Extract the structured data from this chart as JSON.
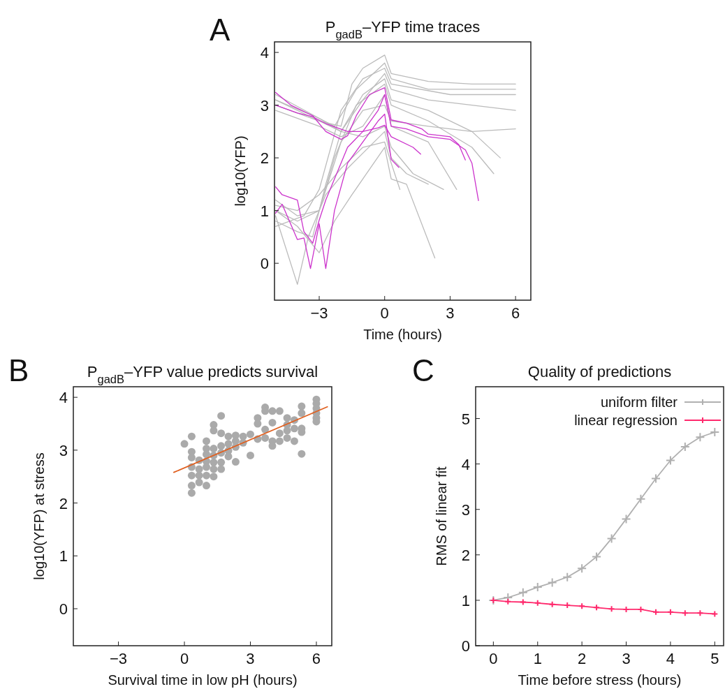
{
  "chart_data": [
    {
      "type": "line",
      "title": "P$_{gadB}$–YFP time traces",
      "xlabel": "Time (hours)",
      "ylabel": "log10(YFP)",
      "annotations": [
        "A"
      ],
      "xlim": [
        -5.05,
        6.7
      ],
      "ylim": [
        -0.7,
        4.2
      ],
      "xticks": [
        {
          "value": -3,
          "label": "−3"
        },
        0,
        3,
        6
      ],
      "yticks": [
        0,
        1,
        2,
        3,
        4
      ],
      "series": [
        {
          "color": "#bbbbbb",
          "x": [
            -5,
            -3,
            -2,
            -1.5,
            -1,
            0,
            0.3,
            2,
            4,
            6
          ],
          "values": [
            3.1,
            2.7,
            2.6,
            3.4,
            3.7,
            3.95,
            3.6,
            3.45,
            3.4,
            3.4
          ]
        },
        {
          "color": "#bbbbbb",
          "x": [
            -5,
            -3,
            -2.3,
            -1.3,
            0,
            0.3,
            2,
            4,
            6
          ],
          "values": [
            3.2,
            2.75,
            2.6,
            3.3,
            3.8,
            3.5,
            3.3,
            3.3,
            3.3
          ]
        },
        {
          "color": "#bbbbbb",
          "x": [
            -5,
            -3,
            -2,
            -1,
            0,
            0.3,
            2,
            4,
            6
          ],
          "values": [
            3.0,
            2.7,
            2.5,
            3.1,
            3.6,
            3.3,
            3.1,
            3.0,
            2.9
          ]
        },
        {
          "color": "#bbbbbb",
          "x": [
            -5,
            -4,
            -3.3,
            -2.7,
            -2,
            -1,
            0,
            0.3,
            2,
            4,
            5.3
          ],
          "values": [
            0.8,
            0.6,
            0.5,
            1.5,
            2.5,
            3.2,
            3.5,
            3.1,
            2.9,
            2.5,
            2.0
          ]
        },
        {
          "color": "#bbbbbb",
          "x": [
            -5,
            -4,
            -3,
            -2.3,
            -1.3,
            0,
            0.3,
            2,
            4,
            5
          ],
          "values": [
            1.2,
            0.9,
            1.0,
            2.0,
            3.0,
            3.4,
            3.0,
            2.7,
            2.2,
            1.7
          ]
        },
        {
          "color": "#bbbbbb",
          "x": [
            -5,
            -4,
            -3.5,
            -2.7,
            -1.7,
            0,
            0.3,
            1,
            2
          ],
          "values": [
            0.9,
            -0.4,
            0.5,
            1.3,
            1.8,
            2.5,
            2.0,
            1.7,
            1.5
          ]
        },
        {
          "color": "#bbbbbb",
          "x": [
            -5,
            -4,
            -3,
            -2.3,
            -1.5,
            0,
            0.3,
            1,
            2.3
          ],
          "values": [
            1.0,
            0.7,
            0.2,
            0.8,
            1.3,
            2.2,
            1.6,
            1.5,
            0.1
          ]
        },
        {
          "color": "#bbbbbb",
          "x": [
            -5,
            -4,
            -3,
            -2,
            -1,
            0,
            0.3,
            0.7
          ],
          "values": [
            1.1,
            1.0,
            1.3,
            1.8,
            2.2,
            2.3,
            1.9,
            1.4
          ]
        },
        {
          "color": "#bbbbbb",
          "x": [
            -5,
            -3,
            -2,
            -1,
            0,
            0.3,
            1.3,
            2.7
          ],
          "values": [
            3.1,
            2.75,
            2.5,
            2.4,
            2.6,
            2.2,
            1.7,
            1.4
          ]
        },
        {
          "color": "#bbbbbb",
          "x": [
            -5,
            -3.7,
            -3,
            -2,
            -1,
            0,
            0.3,
            3,
            6
          ],
          "values": [
            0.7,
            0.9,
            1.4,
            2.9,
            3.5,
            3.7,
            3.4,
            3.2,
            3.2
          ]
        },
        {
          "color": "#bbbbbb",
          "x": [
            -5,
            -4,
            -3,
            -2,
            -1,
            0,
            0.3,
            2,
            4,
            6
          ],
          "values": [
            1.0,
            0.8,
            1.0,
            2.3,
            2.9,
            3.0,
            2.7,
            2.6,
            2.5,
            2.55
          ]
        },
        {
          "color": "#bbbbbb",
          "x": [
            -5,
            -3,
            -2,
            -1,
            0,
            0.3,
            2,
            3.3
          ],
          "values": [
            2.9,
            2.6,
            2.4,
            2.6,
            3.2,
            2.6,
            2.3,
            1.4
          ]
        },
        {
          "color": "#cc33cc",
          "x": [
            -5,
            -4,
            -3.3,
            -2.7,
            -1.7,
            -1,
            -0.3,
            0,
            0.3,
            1.3,
            1.65
          ],
          "values": [
            3.0,
            2.85,
            2.78,
            2.65,
            2.5,
            2.5,
            2.57,
            2.62,
            2.4,
            2.2,
            2.07
          ]
        },
        {
          "color": "#cc33cc",
          "x": [
            -5,
            -4.3,
            -3.3,
            -2.7,
            -2,
            -1.7,
            -1.3,
            -0.7,
            0,
            0.3,
            1,
            1.7,
            2,
            3,
            3.4,
            3.7
          ],
          "values": [
            3.24,
            3.0,
            2.8,
            2.5,
            2.35,
            2.42,
            2.8,
            3.2,
            3.33,
            2.72,
            2.66,
            2.55,
            2.45,
            2.4,
            2.25,
            1.96
          ]
        },
        {
          "color": "#cc33cc",
          "x": [
            -5,
            -4.7,
            -4,
            -3.7,
            -3.3,
            -3,
            -2.7,
            -2.3,
            -1.7,
            -1,
            -0.3,
            0,
            0.3,
            1,
            2,
            3,
            3.7,
            4,
            4.3
          ],
          "values": [
            1.45,
            1.3,
            1.2,
            0.6,
            0.38,
            0.82,
            1.2,
            1.6,
            2.2,
            2.5,
            2.9,
            3.2,
            2.6,
            2.55,
            2.4,
            2.35,
            2.15,
            1.9,
            1.19
          ]
        },
        {
          "color": "#cc33cc",
          "x": [
            -5,
            -4.7,
            -4,
            -3.7,
            -3.4,
            -3,
            -2.7,
            -2.3,
            -1.7,
            -1,
            -0.3,
            0,
            0.3,
            0.65
          ],
          "values": [
            0.95,
            1.12,
            0.45,
            0.48,
            -0.1,
            0.75,
            -0.1,
            1.0,
            1.9,
            2.3,
            2.7,
            2.83,
            1.97,
            1.82
          ]
        }
      ]
    },
    {
      "type": "scatter",
      "title": "P$_{gadB}$–YFP value predicts survival",
      "xlabel": "Survival time in low pH (hours)",
      "ylabel": "log10(YFP) at stress",
      "annotations": [
        "B"
      ],
      "xlim": [
        -5.05,
        6.7
      ],
      "ylim": [
        -0.7,
        4.2
      ],
      "xticks": [
        {
          "value": -3,
          "label": "−3"
        },
        0,
        3,
        6
      ],
      "yticks": [
        0,
        1,
        2,
        3,
        4
      ],
      "series": [
        {
          "color": "#aaaaaa",
          "marker": "circle",
          "x": [
            0,
            0.33,
            0.33,
            0.33,
            0.33,
            0.33,
            0.33,
            0.33,
            0.67,
            0.67,
            0.67,
            0.67,
            1,
            1,
            1,
            1,
            1,
            1,
            1,
            1.33,
            1.33,
            1.33,
            1.33,
            1.33,
            1.33,
            1.33,
            1.67,
            1.67,
            1.67,
            1.67,
            1.67,
            1.67,
            2,
            2,
            2,
            2,
            2.33,
            2.33,
            2.33,
            2.33,
            2.67,
            2.67,
            3,
            3,
            3.33,
            3.33,
            3.33,
            3.67,
            3.67,
            3.67,
            3.67,
            4,
            4,
            4,
            4,
            4.33,
            4.33,
            4.33,
            4.67,
            4.67,
            4.67,
            4.67,
            5,
            5,
            5,
            5.33,
            5.33,
            5.33,
            5.33,
            5.33,
            6,
            6,
            6,
            6,
            6,
            6
          ],
          "values": [
            3.12,
            3.26,
            2.97,
            2.86,
            2.68,
            2.52,
            2.33,
            2.19,
            2.81,
            2.64,
            2.52,
            2.39,
            3.17,
            3.03,
            2.92,
            2.79,
            2.68,
            2.52,
            2.33,
            3.48,
            3.37,
            3.03,
            2.9,
            2.77,
            2.64,
            2.5,
            3.65,
            3.32,
            3.08,
            2.95,
            2.77,
            2.64,
            3.26,
            3.12,
            2.99,
            2.88,
            3.28,
            3.17,
            3.06,
            2.78,
            3.26,
            3.14,
            3.3,
            2.9,
            3.61,
            3.5,
            3.21,
            3.81,
            3.74,
            3.39,
            3.23,
            3.74,
            3.52,
            3.17,
            3.08,
            3.74,
            3.32,
            3.17,
            3.61,
            3.48,
            3.37,
            3.23,
            3.57,
            3.41,
            3.17,
            3.83,
            3.7,
            3.41,
            3.34,
            2.93,
            3.96,
            3.88,
            3.79,
            3.7,
            3.61,
            3.54
          ]
        },
        {
          "type": "line",
          "marker": "none",
          "color": "#e06020",
          "x": [
            -0.48,
            6.5
          ],
          "values": [
            2.58,
            3.82
          ]
        }
      ]
    },
    {
      "type": "line",
      "title": "Quality of predictions",
      "xlabel": "Time before stress (hours)",
      "ylabel": "RMS of linear fit",
      "annotations": [
        "C"
      ],
      "legend": "top right",
      "marker": "cross",
      "xlim": [
        -0.4,
        5.2
      ],
      "ylim": [
        0,
        5.7
      ],
      "xticks": [
        0,
        1,
        2,
        3,
        4,
        5
      ],
      "yticks": [
        0,
        1,
        2,
        3,
        4,
        5
      ],
      "x": [
        0,
        0.33,
        0.67,
        1,
        1.33,
        1.67,
        2,
        2.33,
        2.67,
        3,
        3.33,
        3.67,
        4,
        4.33,
        4.67,
        5
      ],
      "series": [
        {
          "name": "uniform filter",
          "color": "#b0b0b0",
          "values": [
            1.0,
            1.06,
            1.17,
            1.29,
            1.39,
            1.51,
            1.7,
            1.96,
            2.36,
            2.79,
            3.23,
            3.68,
            4.08,
            4.38,
            4.59,
            4.7
          ]
        },
        {
          "name": "linear regression",
          "color": "#ff2a6d",
          "values": [
            1.0,
            0.97,
            0.96,
            0.94,
            0.91,
            0.89,
            0.87,
            0.84,
            0.81,
            0.8,
            0.8,
            0.74,
            0.74,
            0.72,
            0.72,
            0.7
          ]
        }
      ]
    }
  ]
}
